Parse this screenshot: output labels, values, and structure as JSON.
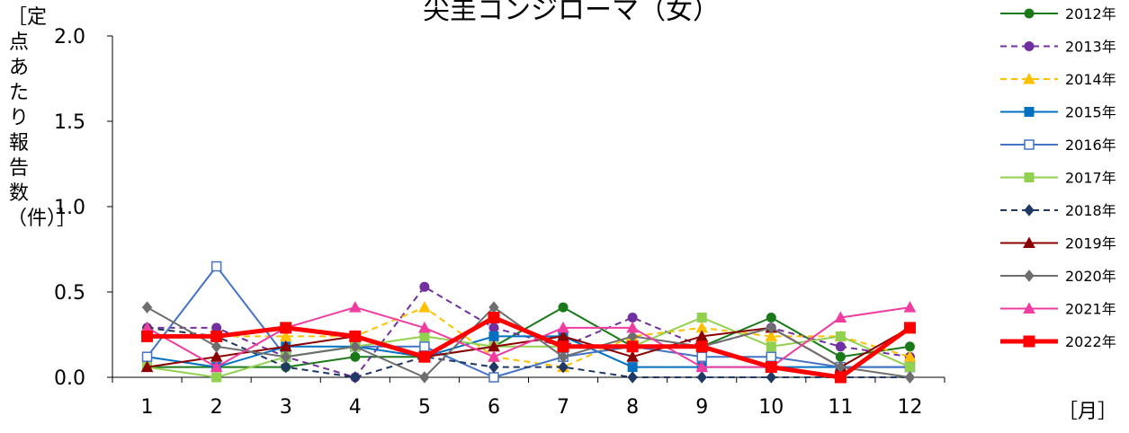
{
  "chart_data": {
    "type": "line",
    "title": "尖圭コンジローマ（女）",
    "ylabel": "［定点あたり報告数（件）］",
    "xlabel": "［月］",
    "categories": [
      "1",
      "2",
      "3",
      "4",
      "5",
      "6",
      "7",
      "8",
      "9",
      "10",
      "11",
      "12"
    ],
    "ylim": [
      0,
      2.0
    ],
    "yticks": [
      "0.0",
      "0.5",
      "1.0",
      "1.5",
      "2.0"
    ],
    "legend_position": "right",
    "series": [
      {
        "name": "2012年",
        "color": "#1a7a1a",
        "marker": "circle",
        "dash": false,
        "width": 2,
        "values": [
          0.06,
          0.06,
          0.06,
          0.12,
          0.12,
          0.18,
          0.41,
          0.18,
          0.18,
          0.35,
          0.12,
          0.18
        ]
      },
      {
        "name": "2013年",
        "color": "#7030a0",
        "marker": "circle",
        "dash": true,
        "width": 2,
        "values": [
          0.29,
          0.29,
          0.12,
          0.0,
          0.53,
          0.29,
          0.18,
          0.35,
          0.18,
          0.29,
          0.18,
          0.12
        ]
      },
      {
        "name": "2014年",
        "color": "#ffc000",
        "marker": "triangle",
        "dash": true,
        "width": 2,
        "values": [
          0.29,
          0.24,
          0.24,
          0.24,
          0.41,
          0.12,
          0.06,
          0.24,
          0.29,
          0.24,
          0.24,
          0.12
        ]
      },
      {
        "name": "2015年",
        "color": "#0070c0",
        "marker": "square",
        "dash": false,
        "width": 2,
        "values": [
          0.12,
          0.06,
          0.18,
          0.18,
          0.12,
          0.24,
          0.24,
          0.06,
          0.06,
          0.06,
          0.06,
          0.06
        ]
      },
      {
        "name": "2016年",
        "color": "#4472c4",
        "marker": "square-open",
        "dash": false,
        "width": 2,
        "values": [
          0.12,
          0.65,
          0.12,
          0.18,
          0.18,
          0.0,
          0.12,
          0.18,
          0.12,
          0.12,
          0.06,
          0.06
        ]
      },
      {
        "name": "2017年",
        "color": "#92d050",
        "marker": "square",
        "dash": false,
        "width": 2,
        "values": [
          0.06,
          0.0,
          0.12,
          0.18,
          0.24,
          0.18,
          0.18,
          0.18,
          0.35,
          0.18,
          0.24,
          0.06
        ]
      },
      {
        "name": "2018年",
        "color": "#1f3864",
        "marker": "diamond",
        "dash": true,
        "width": 2,
        "values": [
          0.29,
          0.24,
          0.06,
          0.0,
          0.12,
          0.06,
          0.06,
          0.0,
          0.0,
          0.0,
          0.0,
          0.0
        ]
      },
      {
        "name": "2019年",
        "color": "#8b0000",
        "marker": "triangle",
        "dash": false,
        "width": 2,
        "values": [
          0.06,
          0.12,
          0.18,
          0.24,
          0.12,
          0.18,
          0.24,
          0.12,
          0.24,
          0.29,
          0.06,
          0.29
        ]
      },
      {
        "name": "2020年",
        "color": "#6e6e6e",
        "marker": "diamond",
        "dash": false,
        "width": 2,
        "values": [
          0.41,
          0.18,
          0.12,
          0.18,
          0.0,
          0.41,
          0.12,
          0.24,
          0.18,
          0.29,
          0.06,
          0.0
        ]
      },
      {
        "name": "2021年",
        "color": "#f03ca0",
        "marker": "triangle",
        "dash": false,
        "width": 2,
        "values": [
          0.29,
          0.06,
          0.29,
          0.41,
          0.29,
          0.12,
          0.29,
          0.29,
          0.06,
          0.06,
          0.35,
          0.41
        ]
      },
      {
        "name": "2022年",
        "color": "#ff0000",
        "marker": "square",
        "dash": false,
        "width": 5,
        "values": [
          0.24,
          0.24,
          0.29,
          0.24,
          0.12,
          0.35,
          0.18,
          0.18,
          0.18,
          0.06,
          0.0,
          0.29
        ]
      }
    ]
  }
}
